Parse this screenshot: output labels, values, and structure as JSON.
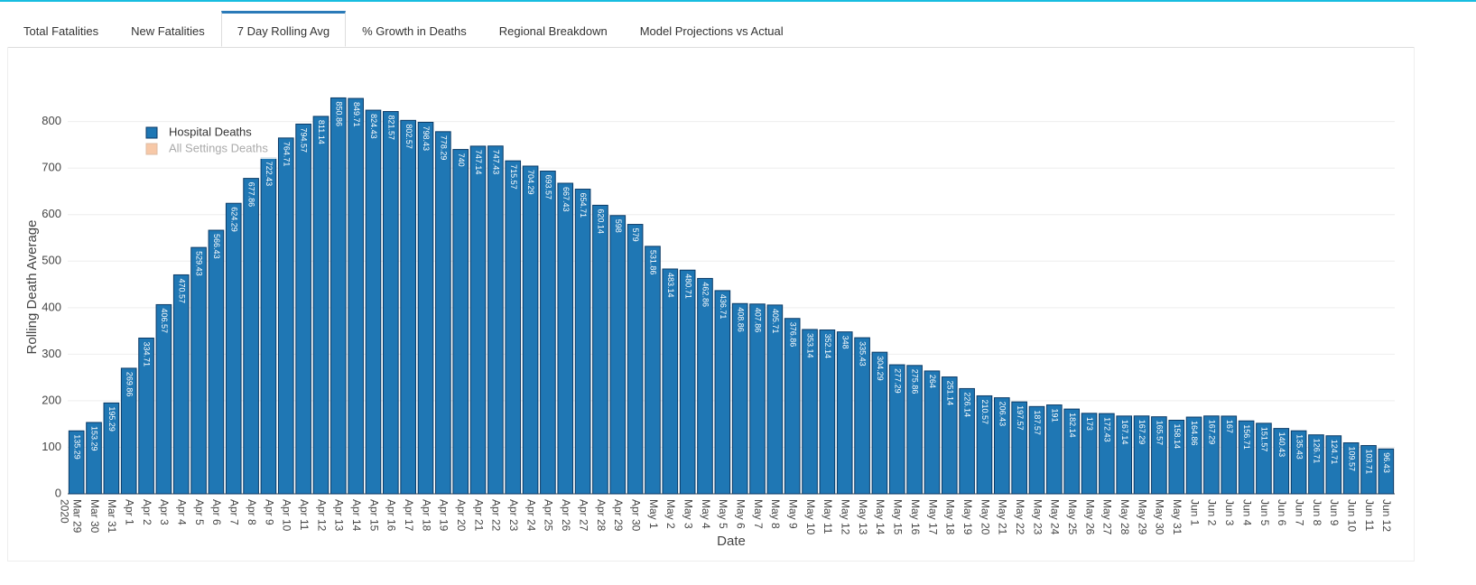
{
  "tabs": [
    "Total Fatalities",
    "New Fatalities",
    "7 Day Rolling Avg",
    "% Growth in Deaths",
    "Regional Breakdown",
    "Model Projections vs Actual"
  ],
  "active_tab": 2,
  "chart_data": {
    "type": "bar",
    "x_label": "Date",
    "y_label": "Rolling Death Average",
    "x_year": "2020",
    "categories": [
      "Mar 29",
      "Mar 30",
      "Mar 31",
      "Apr 1",
      "Apr 2",
      "Apr 3",
      "Apr 4",
      "Apr 5",
      "Apr 6",
      "Apr 7",
      "Apr 8",
      "Apr 9",
      "Apr 10",
      "Apr 11",
      "Apr 12",
      "Apr 13",
      "Apr 14",
      "Apr 15",
      "Apr 16",
      "Apr 17",
      "Apr 18",
      "Apr 19",
      "Apr 20",
      "Apr 21",
      "Apr 22",
      "Apr 23",
      "Apr 24",
      "Apr 25",
      "Apr 26",
      "Apr 27",
      "Apr 28",
      "Apr 29",
      "Apr 30",
      "May 1",
      "May 2",
      "May 3",
      "May 4",
      "May 5",
      "May 6",
      "May 7",
      "May 8",
      "May 9",
      "May 10",
      "May 11",
      "May 12",
      "May 13",
      "May 14",
      "May 15",
      "May 16",
      "May 17",
      "May 18",
      "May 19",
      "May 20",
      "May 21",
      "May 22",
      "May 23",
      "May 24",
      "May 25",
      "May 26",
      "May 27",
      "May 28",
      "May 29",
      "May 30",
      "May 31",
      "Jun 1",
      "Jun 2",
      "Jun 3",
      "Jun 4",
      "Jun 5",
      "Jun 6",
      "Jun 7",
      "Jun 8",
      "Jun 9",
      "Jun 10",
      "Jun 11",
      "Jun 12"
    ],
    "series": [
      {
        "name": "Hospital Deaths",
        "color": "#1f77b4",
        "visible": true,
        "values": [
          135.29,
          153.29,
          195.29,
          269.86,
          334.71,
          406.57,
          470.57,
          529.43,
          566.43,
          624.29,
          677.86,
          722.43,
          764.71,
          794.57,
          811.14,
          850.86,
          849.71,
          824.43,
          821.57,
          802.57,
          798.43,
          778.29,
          740,
          747.14,
          747.43,
          715.57,
          704.29,
          693.57,
          667.43,
          654.71,
          620.14,
          598,
          579,
          531.86,
          483.14,
          480.71,
          462.86,
          436.71,
          408.86,
          407.86,
          405.71,
          376.86,
          353.14,
          352.14,
          348,
          335.43,
          304.29,
          277.29,
          275.86,
          264,
          251.14,
          226.14,
          210.57,
          206.43,
          197.57,
          187.57,
          191,
          182.14,
          173,
          172.43,
          167.14,
          167.29,
          165.57,
          158.14,
          164.86,
          167.29,
          167,
          156.71,
          151.57,
          140.43,
          135.43,
          126.71,
          124.71,
          109.57,
          103.71,
          96.43
        ]
      },
      {
        "name": "All Settings Deaths",
        "color": "#f4b183",
        "visible": false
      }
    ],
    "ylim": [
      0,
      875
    ],
    "yticks": [
      0,
      100,
      200,
      300,
      400,
      500,
      600,
      700,
      800
    ],
    "grid": true,
    "legend": "top-left"
  }
}
